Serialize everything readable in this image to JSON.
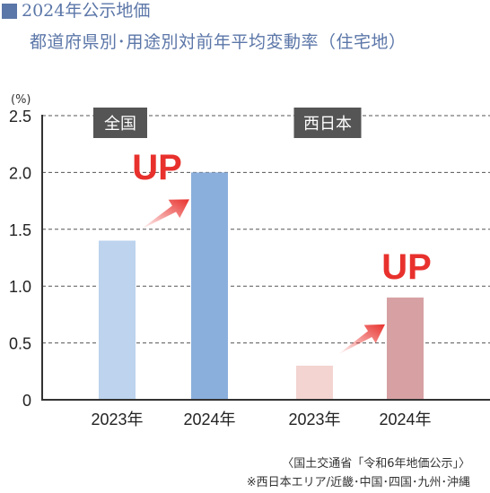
{
  "header": {
    "title": "2024年公示地価",
    "subtitle": "都道府県別･用途別対前年平均変動率（住宅地）"
  },
  "chart_data": {
    "type": "bar",
    "ylabel": "(%)",
    "ylim": [
      0,
      2.5
    ],
    "yticks": [
      "0",
      "0.5",
      "1.0",
      "1.5",
      "2.0",
      "2.5"
    ],
    "grid": "dashed",
    "groups": [
      {
        "label": "全国",
        "categories": [
          "2023年",
          "2024年"
        ],
        "values": [
          1.4,
          2.0
        ],
        "colors": [
          "#bdd3ee",
          "#8aafdd"
        ],
        "annotation": "UP"
      },
      {
        "label": "西日本",
        "categories": [
          "2023年",
          "2024年"
        ],
        "values": [
          0.3,
          0.9
        ],
        "colors": [
          "#f3d4d0",
          "#d7a1a4"
        ],
        "annotation": "UP"
      }
    ],
    "annotation_color": "#e8312d",
    "group_label_bg": "#555555"
  },
  "notes": {
    "source": "〈国土交通省「令和6年地価公示」〉",
    "footnote": "※西日本エリア/近畿･中国･四国･九州･沖縄"
  }
}
